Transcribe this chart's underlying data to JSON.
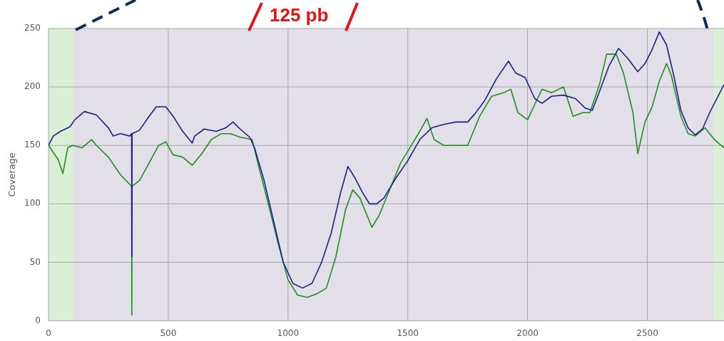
{
  "chart_data": {
    "type": "line",
    "ylabel": "Coverage",
    "annotations": [
      "125 pb"
    ],
    "xlim": [
      0,
      2820
    ],
    "xticks": [
      0,
      500,
      1000,
      1500,
      2000,
      2500
    ],
    "ylim": [
      0,
      250
    ],
    "yticks": [
      0,
      50,
      100,
      150,
      200,
      250
    ],
    "grid": true,
    "bands": [
      {
        "axis": "x",
        "from": 0,
        "to": 103,
        "color": "#dbeed6"
      },
      {
        "axis": "x",
        "from": 2775,
        "to": 2820,
        "color": "#dbeed6"
      }
    ],
    "series": [
      {
        "color": "#1c1c8c",
        "x": [
          0,
          20,
          50,
          90,
          110,
          150,
          200,
          250,
          270,
          300,
          340,
          347,
          348,
          349,
          380,
          420,
          450,
          490,
          520,
          560,
          600,
          610,
          650,
          700,
          740,
          770,
          800,
          840,
          860,
          900,
          940,
          980,
          1020,
          1060,
          1100,
          1140,
          1180,
          1220,
          1250,
          1280,
          1310,
          1340,
          1370,
          1400,
          1450,
          1500,
          1550,
          1600,
          1650,
          1700,
          1750,
          1780,
          1820,
          1870,
          1920,
          1950,
          1990,
          2030,
          2060,
          2100,
          2150,
          2200,
          2240,
          2270,
          2300,
          2340,
          2380,
          2420,
          2460,
          2490,
          2520,
          2550,
          2580,
          2610,
          2640,
          2670,
          2700,
          2730,
          2760,
          2790,
          2820
        ],
        "values": [
          150,
          158,
          162,
          166,
          172,
          179,
          176,
          165,
          158,
          160,
          158,
          160,
          55,
          160,
          163,
          175,
          183,
          183,
          175,
          162,
          152,
          158,
          164,
          162,
          165,
          170,
          164,
          157,
          148,
          120,
          85,
          50,
          32,
          28,
          32,
          50,
          75,
          110,
          132,
          122,
          110,
          100,
          100,
          105,
          122,
          137,
          155,
          165,
          168,
          170,
          170,
          177,
          188,
          207,
          222,
          212,
          208,
          190,
          186,
          192,
          193,
          190,
          182,
          180,
          196,
          218,
          233,
          224,
          213,
          220,
          232,
          247,
          236,
          210,
          180,
          165,
          159,
          164,
          178,
          190,
          202
        ]
      },
      {
        "color": "#228b22",
        "x": [
          0,
          40,
          60,
          80,
          100,
          140,
          180,
          200,
          250,
          300,
          347,
          348,
          349,
          380,
          420,
          460,
          490,
          520,
          560,
          600,
          640,
          680,
          720,
          760,
          800,
          850,
          880,
          920,
          960,
          1000,
          1040,
          1080,
          1120,
          1160,
          1200,
          1240,
          1270,
          1300,
          1330,
          1350,
          1380,
          1420,
          1470,
          1500,
          1550,
          1580,
          1610,
          1650,
          1700,
          1750,
          1800,
          1850,
          1900,
          1930,
          1960,
          2000,
          2030,
          2060,
          2100,
          2150,
          2190,
          2230,
          2260,
          2300,
          2330,
          2370,
          2400,
          2440,
          2460,
          2490,
          2520,
          2550,
          2580,
          2600,
          2640,
          2670,
          2700,
          2740,
          2780,
          2820
        ],
        "values": [
          150,
          138,
          126,
          148,
          150,
          148,
          155,
          150,
          140,
          125,
          115,
          5,
          115,
          120,
          135,
          150,
          153,
          142,
          140,
          133,
          143,
          155,
          160,
          160,
          157,
          155,
          130,
          98,
          65,
          35,
          22,
          20,
          23,
          28,
          55,
          95,
          112,
          105,
          90,
          80,
          90,
          110,
          135,
          145,
          162,
          173,
          155,
          150,
          150,
          150,
          175,
          192,
          195,
          198,
          178,
          172,
          185,
          198,
          195,
          200,
          175,
          178,
          178,
          202,
          228,
          228,
          212,
          178,
          143,
          170,
          183,
          205,
          220,
          210,
          175,
          160,
          158,
          165,
          155,
          148
        ]
      }
    ]
  }
}
